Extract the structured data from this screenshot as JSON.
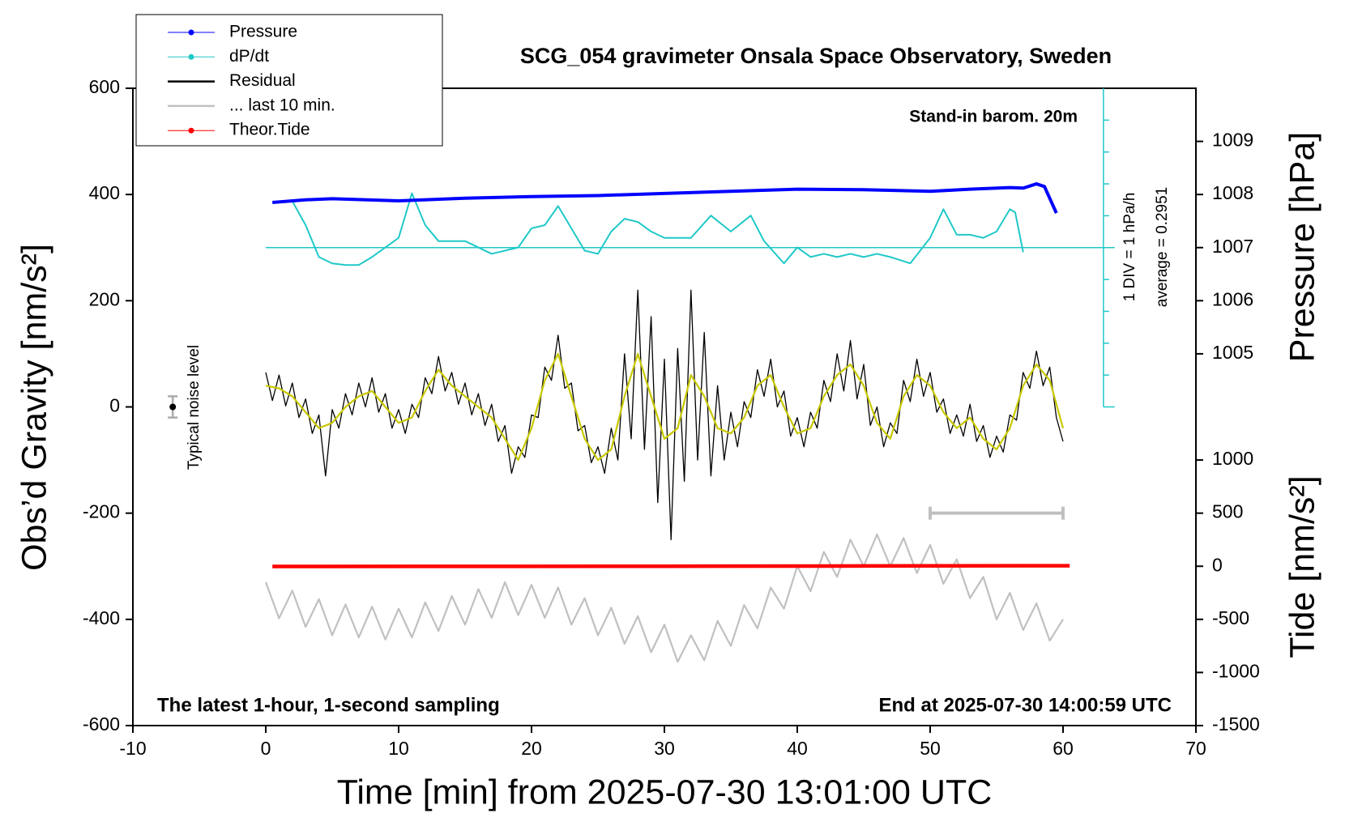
{
  "chart_data": {
    "type": "line",
    "title": "SCG_054 gravimeter Onsala Space Observatory, Sweden",
    "xlabel": "Time [min] from 2025-07-30 13:01:00 UTC",
    "ylabel": "Obs’d Gravity [nm/s²]",
    "y2label": "Pressure [hPa]",
    "y3label": "Tide [nm/s²]",
    "xlim": [
      -10,
      70
    ],
    "xticks": [
      -10,
      0,
      10,
      20,
      30,
      40,
      50,
      60,
      70
    ],
    "ylim": [
      -600,
      600
    ],
    "yticks": [
      -600,
      -400,
      -200,
      0,
      200,
      400,
      600
    ],
    "y2lim": [
      998,
      1010
    ],
    "y2ticks": [
      1005,
      1006,
      1007,
      1008,
      1009
    ],
    "y3lim": [
      -1500,
      4500
    ],
    "y3ticks": [
      -1500,
      -1000,
      -500,
      0,
      500,
      1000
    ],
    "annotations": {
      "barometer": "Stand-in barom. 20m",
      "sampling": "The latest 1-hour, 1-second sampling",
      "end": "End at 2025-07-30 14:00:59 UTC",
      "div": "1 DIV = 1 hPa/h"
    },
    "dpdt_average": {
      "value": 0.2951,
      "label": "average = 0.2951"
    },
    "noise": {
      "label": "Typical noise level",
      "x": -7,
      "y": 0,
      "error": 20
    },
    "last_10_min_bar": {
      "x": [
        50,
        60
      ],
      "y": -200,
      "color": "#c0c0c0"
    },
    "series": [
      {
        "name": "Pressure",
        "color": "#0000ff",
        "axis": "y2",
        "marker": "circle",
        "x": [
          0.5,
          3,
          5,
          10,
          15,
          20,
          25,
          30,
          35,
          40,
          45,
          50,
          53,
          56,
          57,
          58,
          58.6,
          59.5
        ],
        "values": [
          1007.85,
          1007.9,
          1007.92,
          1007.88,
          1007.93,
          1007.96,
          1007.98,
          1008.02,
          1008.06,
          1008.1,
          1008.09,
          1008.06,
          1008.1,
          1008.13,
          1008.12,
          1008.2,
          1008.15,
          1007.65
        ]
      },
      {
        "name": "dP/dt",
        "color": "#20c8c8",
        "axis": "dpdt",
        "marker": "circle",
        "x": [
          2,
          3,
          4,
          5,
          6,
          7,
          8,
          9,
          10,
          11,
          12,
          13,
          15,
          17,
          19,
          20,
          21,
          22,
          23,
          24,
          25,
          26,
          27,
          28,
          29,
          30,
          32,
          33.5,
          35,
          36.5,
          37.5,
          39,
          40,
          41,
          42,
          43,
          44,
          45,
          46,
          47,
          48.5,
          50,
          51,
          52,
          53,
          54,
          55,
          56,
          56.4,
          57
        ],
        "values": [
          1.75,
          1.0,
          0.0,
          -0.2,
          -0.25,
          -0.25,
          0.0,
          0.3,
          0.6,
          2.0,
          1.0,
          0.5,
          0.5,
          0.1,
          0.3,
          0.9,
          1.0,
          1.6,
          0.9,
          0.2,
          0.1,
          0.8,
          1.2,
          1.1,
          0.8,
          0.6,
          0.6,
          1.3,
          0.8,
          1.3,
          0.5,
          -0.2,
          0.3,
          0.0,
          0.1,
          0.0,
          0.1,
          0.0,
          0.1,
          0.0,
          -0.2,
          0.6,
          1.5,
          0.7,
          0.7,
          0.6,
          0.8,
          1.5,
          1.4,
          0.15
        ]
      },
      {
        "name": "Residual",
        "color": "#000000",
        "axis": "y",
        "x": [
          0,
          0.5,
          1,
          1.5,
          2,
          2.5,
          3,
          3.5,
          4,
          4.5,
          5,
          5.5,
          6,
          6.5,
          7,
          7.5,
          8,
          8.5,
          9,
          9.5,
          10,
          10.5,
          11,
          11.5,
          12,
          12.5,
          13,
          13.5,
          14,
          14.5,
          15,
          15.5,
          16,
          16.5,
          17,
          17.5,
          18,
          18.5,
          19,
          19.5,
          20,
          20.5,
          21,
          21.5,
          22,
          22.5,
          23,
          23.5,
          24,
          24.5,
          25,
          25.5,
          26,
          26.5,
          27,
          27.5,
          28,
          28.5,
          29,
          29.5,
          30,
          30.5,
          31,
          31.5,
          32,
          32.5,
          33,
          33.5,
          34,
          34.5,
          35,
          35.5,
          36,
          36.5,
          37,
          37.5,
          38,
          38.5,
          39,
          39.5,
          40,
          40.5,
          41,
          41.5,
          42,
          42.5,
          43,
          43.5,
          44,
          44.5,
          45,
          45.5,
          46,
          46.5,
          47,
          47.5,
          48,
          48.5,
          49,
          49.5,
          50,
          50.5,
          51,
          51.5,
          52,
          52.5,
          53,
          53.5,
          54,
          54.5,
          55,
          55.5,
          56,
          56.5,
          57,
          57.5,
          58,
          58.5,
          59,
          59.5,
          60
        ],
        "values": [
          65,
          12,
          60,
          2,
          45,
          -20,
          15,
          -50,
          -15,
          -130,
          -5,
          -40,
          25,
          -15,
          45,
          0,
          55,
          -10,
          25,
          -40,
          -5,
          -50,
          5,
          -20,
          55,
          25,
          95,
          30,
          65,
          5,
          45,
          -15,
          25,
          -35,
          5,
          -65,
          -35,
          -125,
          -75,
          -95,
          -15,
          -20,
          75,
          50,
          135,
          35,
          45,
          -45,
          -35,
          -105,
          -75,
          -125,
          -40,
          -100,
          100,
          -60,
          220,
          -80,
          170,
          -180,
          90,
          -250,
          110,
          -140,
          220,
          -100,
          140,
          -130,
          40,
          -100,
          -10,
          -75,
          10,
          -20,
          70,
          20,
          90,
          0,
          30,
          -55,
          -20,
          -75,
          -10,
          -40,
          50,
          10,
          100,
          30,
          125,
          15,
          80,
          -35,
          0,
          -75,
          -30,
          -50,
          50,
          10,
          90,
          20,
          65,
          -10,
          15,
          -50,
          -15,
          -55,
          5,
          -65,
          -35,
          -95,
          -55,
          -85,
          -15,
          -25,
          65,
          35,
          105,
          40,
          75,
          -20,
          -65
        ]
      },
      {
        "name": "... last 10 min.",
        "color": "#c0c0c0",
        "axis": "y",
        "x": [
          0,
          1,
          2,
          3,
          4,
          5,
          6,
          7,
          8,
          9,
          10,
          11,
          12,
          13,
          14,
          15,
          16,
          17,
          18,
          19,
          20,
          21,
          22,
          23,
          24,
          25,
          26,
          27,
          28,
          29,
          30,
          31,
          32,
          33,
          34,
          35,
          36,
          37,
          38,
          39,
          40,
          41,
          42,
          43,
          44,
          45,
          46,
          47,
          48,
          49,
          50,
          51,
          52,
          53,
          54,
          55,
          56,
          57,
          58,
          59,
          60
        ],
        "values": [
          -330,
          -398,
          -346,
          -414,
          -362,
          -430,
          -372,
          -434,
          -376,
          -438,
          -380,
          -434,
          -368,
          -422,
          -356,
          -410,
          -343,
          -397,
          -330,
          -392,
          -335,
          -397,
          -340,
          -410,
          -360,
          -430,
          -378,
          -446,
          -394,
          -462,
          -410,
          -480,
          -430,
          -477,
          -403,
          -450,
          -373,
          -417,
          -340,
          -380,
          -300,
          -347,
          -273,
          -320,
          -250,
          -300,
          -240,
          -300,
          -247,
          -313,
          -260,
          -333,
          -287,
          -360,
          -320,
          -400,
          -350,
          -420,
          -370,
          -440,
          -400
        ]
      },
      {
        "name": "Theor.Tide",
        "color": "#ff0000",
        "axis": "y3",
        "marker": "circle",
        "x": [
          0.5,
          30,
          45,
          60.5
        ],
        "values": [
          -2,
          0,
          3,
          5
        ]
      },
      {
        "color": "#c8c800",
        "axis": "y",
        "x": [
          0,
          1,
          2,
          3,
          4,
          5,
          6,
          7,
          8,
          9,
          10,
          11,
          12,
          13,
          14,
          15,
          16,
          17,
          18,
          19,
          20,
          21,
          22,
          23,
          24,
          25,
          26,
          27,
          28,
          29,
          30,
          31,
          32,
          33,
          34,
          35,
          36,
          37,
          38,
          39,
          40,
          41,
          42,
          43,
          44,
          45,
          46,
          47,
          48,
          49,
          50,
          51,
          52,
          53,
          54,
          55,
          56,
          57,
          58,
          59,
          60
        ],
        "values": [
          40,
          35,
          20,
          -10,
          -40,
          -30,
          0,
          20,
          30,
          0,
          -30,
          -20,
          30,
          70,
          40,
          20,
          0,
          -20,
          -60,
          -100,
          -40,
          50,
          100,
          20,
          -60,
          -100,
          -80,
          20,
          100,
          20,
          -60,
          -40,
          60,
          20,
          -40,
          -50,
          -20,
          40,
          60,
          0,
          -50,
          -40,
          20,
          60,
          80,
          40,
          -30,
          -60,
          20,
          60,
          40,
          -10,
          -40,
          -20,
          -60,
          -80,
          -40,
          40,
          80,
          50,
          -40
        ]
      }
    ]
  }
}
